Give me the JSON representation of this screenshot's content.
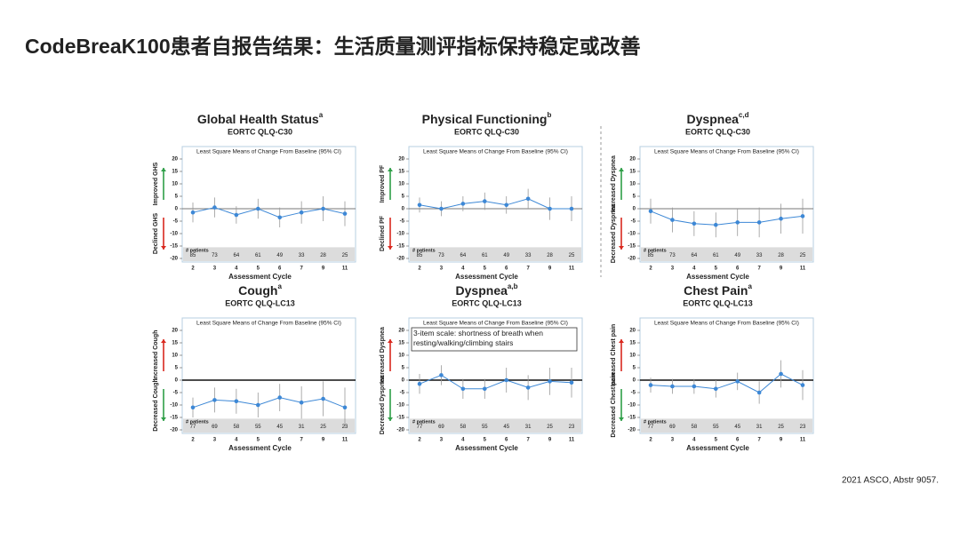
{
  "title": "CodeBreaK100患者自报告结果：生活质量测评指标保持稳定或改善",
  "source": "2021 ASCO, Abstr 9057.",
  "chart_data": [
    {
      "type": "line",
      "title": "Global Health Status",
      "title_note": "a",
      "subtitle": "EORTC QLQ-C30",
      "plot_title": "Least Square Means of Change From Baseline (95% CI)",
      "xlabel": "Assessment Cycle",
      "up_label": "Improved GHS",
      "up_color": "#2e9e47",
      "down_label": "Declined GHS",
      "down_color": "#d9281e",
      "categories": [
        "2",
        "3",
        "4",
        "5",
        "6",
        "7",
        "9",
        "11"
      ],
      "series": [
        {
          "name": "GHS",
          "color": "#3d88d6",
          "values": [
            -1.5,
            0.5,
            -2.5,
            0,
            -3.5,
            -1.5,
            0,
            -2
          ],
          "errors": [
            4,
            4,
            3.5,
            4,
            4,
            4.5,
            5,
            5
          ]
        }
      ],
      "patients_label": "# patients",
      "patients": [
        85,
        73,
        64,
        61,
        49,
        33,
        28,
        25
      ],
      "ylim": [
        -20,
        20
      ],
      "yticks": [
        -20,
        -15,
        -10,
        -5,
        0,
        5,
        10,
        15,
        20
      ]
    },
    {
      "type": "line",
      "title": "Physical Functioning",
      "title_note": "b",
      "subtitle": "EORTC QLQ-C30",
      "plot_title": "Least Square Means of Change From Baseline (95% CI)",
      "xlabel": "Assessment Cycle",
      "up_label": "Improved PF",
      "up_color": "#2e9e47",
      "down_label": "Declined PF",
      "down_color": "#d9281e",
      "categories": [
        "2",
        "3",
        "4",
        "5",
        "6",
        "7",
        "9",
        "11"
      ],
      "series": [
        {
          "name": "PF",
          "color": "#3d88d6",
          "values": [
            1.5,
            0,
            2,
            3,
            1.5,
            4,
            0,
            0
          ],
          "errors": [
            3,
            3,
            3,
            3.5,
            3.5,
            4,
            4.5,
            5
          ]
        }
      ],
      "patients_label": "# patients",
      "patients": [
        85,
        73,
        64,
        61,
        49,
        33,
        28,
        25
      ],
      "ylim": [
        -20,
        20
      ],
      "yticks": [
        -20,
        -15,
        -10,
        -5,
        0,
        5,
        10,
        15,
        20
      ]
    },
    {
      "type": "line",
      "title": "Dyspnea",
      "title_note": "c,d",
      "subtitle": "EORTC QLQ-C30",
      "plot_title": "Least Square Means of Change From Baseline (95% CI)",
      "xlabel": "Assessment Cycle",
      "up_label": "Increased Dyspnea",
      "up_color": "#2e9e47",
      "down_label": "Decreased Dyspnea",
      "down_color": "#d9281e",
      "categories": [
        "2",
        "3",
        "4",
        "5",
        "6",
        "7",
        "9",
        "11"
      ],
      "series": [
        {
          "name": "Dyspnea",
          "color": "#3d88d6",
          "values": [
            -1,
            -4.5,
            -6,
            -6.5,
            -5.5,
            -5.5,
            -4,
            -3
          ],
          "errors": [
            5,
            5,
            5,
            5,
            5.5,
            6,
            6,
            7
          ]
        }
      ],
      "patients_label": "# patients",
      "patients": [
        85,
        73,
        64,
        61,
        49,
        33,
        28,
        25
      ],
      "ylim": [
        -20,
        20
      ],
      "yticks": [
        -20,
        -15,
        -10,
        -5,
        0,
        5,
        10,
        15,
        20
      ]
    },
    {
      "type": "line",
      "title": "Cough",
      "title_note": "a",
      "subtitle": "EORTC QLQ-LC13",
      "plot_title": "Least Square Means of Change From Baseline (95% CI)",
      "xlabel": "Assessment Cycle",
      "up_label": "Increased Cough",
      "up_color": "#d9281e",
      "down_label": "Decreased Cough",
      "down_color": "#2e9e47",
      "categories": [
        "2",
        "3",
        "4",
        "5",
        "6",
        "7",
        "9",
        "11"
      ],
      "series": [
        {
          "name": "Cough",
          "color": "#3d88d6",
          "values": [
            -11,
            -8,
            -8.5,
            -10,
            -7,
            -9,
            -7.5,
            -11
          ],
          "errors": [
            4,
            5,
            5,
            5,
            5.5,
            6.5,
            7,
            8
          ]
        }
      ],
      "patients_label": "# patients",
      "patients": [
        77,
        69,
        58,
        55,
        45,
        31,
        25,
        23
      ],
      "ylim": [
        -20,
        20
      ],
      "yticks": [
        -20,
        -15,
        -10,
        -5,
        0,
        5,
        10,
        15,
        20
      ]
    },
    {
      "type": "line",
      "title": "Dyspnea",
      "title_note": "a,b",
      "subtitle": "EORTC QLQ-LC13",
      "plot_title": "Least Square Means of Change From Baseline (95% CI)",
      "xlabel": "Assessment Cycle",
      "annotation": "3-item scale: shortness of breath when resting/walking/climbing stairs",
      "up_label": "Increased Dyspnea",
      "up_color": "#d9281e",
      "down_label": "Decreased Dyspnea",
      "down_color": "#2e9e47",
      "categories": [
        "2",
        "3",
        "4",
        "5",
        "6",
        "7",
        "9",
        "11"
      ],
      "series": [
        {
          "name": "Dyspnea",
          "color": "#3d88d6",
          "values": [
            -1.5,
            2,
            -3.5,
            -3.5,
            0,
            -3,
            -0.5,
            -1
          ],
          "errors": [
            4,
            4,
            4,
            4,
            5,
            5,
            5.5,
            6
          ]
        }
      ],
      "patients_label": "# patients",
      "patients": [
        77,
        69,
        58,
        55,
        45,
        31,
        25,
        23
      ],
      "ylim": [
        -20,
        20
      ],
      "yticks": [
        -20,
        -15,
        -10,
        -5,
        0,
        5,
        10,
        15,
        20
      ]
    },
    {
      "type": "line",
      "title": "Chest Pain",
      "title_note": "a",
      "subtitle": "EORTC QLQ-LC13",
      "plot_title": "Least Square Means of Change From Baseline (95% CI)",
      "xlabel": "Assessment Cycle",
      "up_label": "Increased Chest pain",
      "up_color": "#d9281e",
      "down_label": "Decreased Chest pain",
      "down_color": "#2e9e47",
      "categories": [
        "2",
        "3",
        "4",
        "5",
        "6",
        "7",
        "9",
        "11"
      ],
      "series": [
        {
          "name": "Chest pain",
          "color": "#3d88d6",
          "values": [
            -2,
            -2.5,
            -2.5,
            -3.5,
            -0.5,
            -5,
            2.5,
            -2
          ],
          "errors": [
            3,
            3,
            3,
            3.5,
            3.5,
            4.5,
            5.5,
            6
          ]
        }
      ],
      "patients_label": "# patients",
      "patients": [
        77,
        69,
        58,
        55,
        45,
        31,
        25,
        23
      ],
      "ylim": [
        -20,
        20
      ],
      "yticks": [
        -20,
        -15,
        -10,
        -5,
        0,
        5,
        10,
        15,
        20
      ]
    }
  ]
}
